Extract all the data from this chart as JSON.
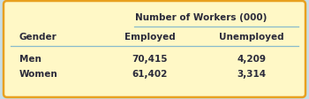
{
  "title": "Number of Workers (000)",
  "col_headers": [
    "Gender",
    "Employed",
    "Unemployed"
  ],
  "rows": [
    [
      "Men",
      "70,415",
      "4,209"
    ],
    [
      "Women",
      "61,402",
      "3,314"
    ]
  ],
  "bg_color": "#FFF8C6",
  "border_color": "#E8A020",
  "outer_bg_color": "#C5DDE8",
  "header_fontsize": 7.5,
  "data_fontsize": 7.5,
  "text_color": "#2A2A3A",
  "line_color": "#88BBCC"
}
